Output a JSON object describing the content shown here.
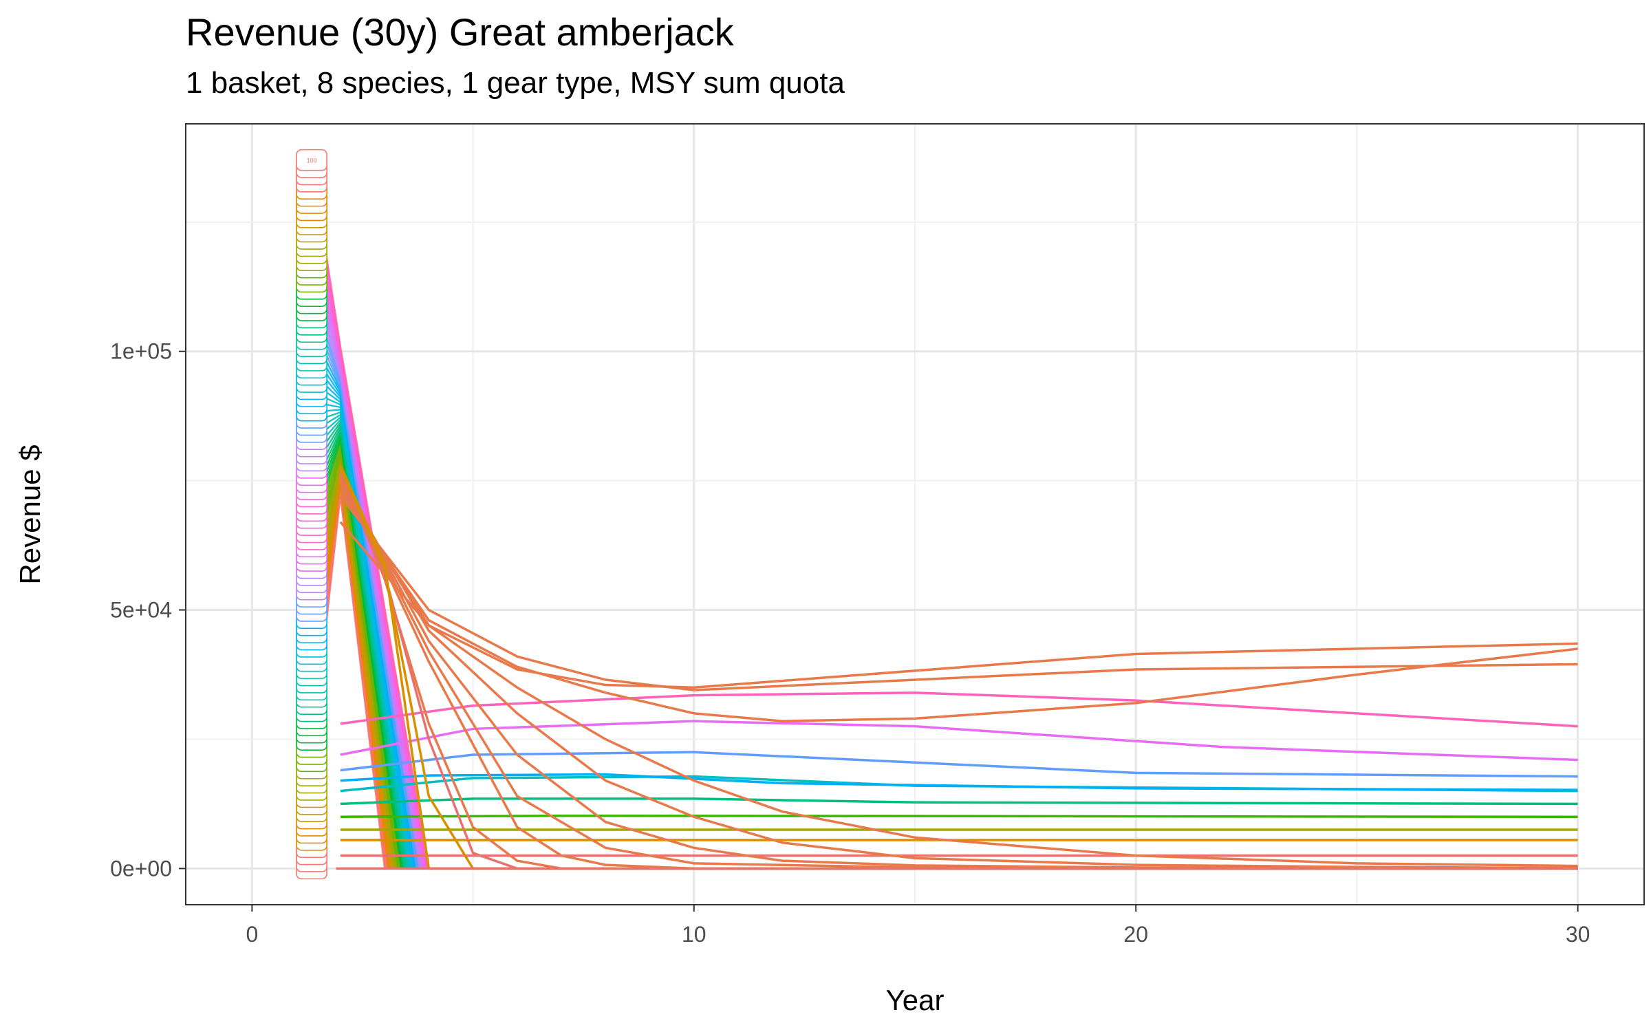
{
  "chart_data": {
    "type": "line",
    "title": "Revenue (30y) Great amberjack",
    "subtitle": "1 basket, 8 species, 1 gear type, MSY sum quota",
    "xlabel": "Year",
    "ylabel": "Revenue $",
    "xlim": [
      -1.5,
      31.5
    ],
    "ylim": [
      -7000,
      144000
    ],
    "x_ticks": [
      0,
      10,
      20,
      30
    ],
    "x_tick_labels": [
      "0",
      "10",
      "20",
      "30"
    ],
    "y_ticks": [
      0,
      50000,
      100000
    ],
    "y_tick_labels": [
      "0e+00",
      "5e+04",
      "1e+05"
    ],
    "grid": true,
    "legend": "none",
    "start_label": "100",
    "start_label_count": 100,
    "start_label_x": 1.35,
    "start_label_max": 137000,
    "series": [
      {
        "color": "#e8706d",
        "x": [
          2,
          7,
          30
        ],
        "y": [
          2500,
          2500,
          2500
        ]
      },
      {
        "color": "#d89000",
        "x": [
          2,
          7,
          30
        ],
        "y": [
          5500,
          5500,
          5500
        ]
      },
      {
        "color": "#a3a500",
        "x": [
          2,
          7,
          30
        ],
        "y": [
          7500,
          7500,
          7500
        ]
      },
      {
        "color": "#39b600",
        "x": [
          2,
          7,
          30
        ],
        "y": [
          10000,
          10200,
          10000
        ]
      },
      {
        "color": "#00bf7d",
        "x": [
          2,
          5,
          10,
          15,
          30
        ],
        "y": [
          12500,
          13500,
          13500,
          12800,
          12500
        ]
      },
      {
        "color": "#00bfc4",
        "x": [
          2,
          5,
          10,
          15,
          30
        ],
        "y": [
          15000,
          17500,
          17800,
          16000,
          15000
        ]
      },
      {
        "color": "#00b0f6",
        "x": [
          2,
          4,
          8,
          12,
          20,
          30
        ],
        "y": [
          17000,
          18000,
          18200,
          16500,
          15500,
          15200
        ]
      },
      {
        "color": "#619cff",
        "x": [
          2,
          5,
          10,
          15,
          20,
          30
        ],
        "y": [
          19000,
          22000,
          22500,
          20500,
          18500,
          17800
        ]
      },
      {
        "color": "#e76bf3",
        "x": [
          2,
          5,
          10,
          15,
          22,
          30
        ],
        "y": [
          22000,
          27000,
          28500,
          27500,
          23500,
          21000
        ]
      },
      {
        "color": "#ff62bc",
        "x": [
          2,
          5,
          10,
          15,
          20,
          30
        ],
        "y": [
          28000,
          31500,
          33500,
          34000,
          32500,
          27500
        ]
      },
      {
        "color": "#e8794a",
        "x": [
          2,
          4,
          6,
          8,
          10,
          20,
          30
        ],
        "y": [
          67000,
          47000,
          38500,
          35500,
          35000,
          41500,
          43500
        ]
      },
      {
        "color": "#e8794a",
        "x": [
          2,
          4,
          6,
          8,
          10,
          20,
          30
        ],
        "y": [
          72000,
          50000,
          41000,
          36500,
          34500,
          38500,
          39500
        ]
      },
      {
        "color": "#e8794a",
        "x": [
          2,
          4,
          6,
          8,
          10,
          12,
          15,
          20,
          25,
          30
        ],
        "y": [
          73000,
          48000,
          39000,
          34000,
          30000,
          28500,
          29000,
          32000,
          37500,
          42500
        ]
      },
      {
        "color": "#e8794a",
        "x": [
          2,
          4,
          6,
          8,
          10,
          12,
          15,
          20,
          25,
          30
        ],
        "y": [
          74000,
          47000,
          35000,
          25000,
          17000,
          11000,
          6000,
          2500,
          1000,
          500
        ]
      },
      {
        "color": "#e8794a",
        "x": [
          2,
          4,
          6,
          8,
          10,
          12,
          15,
          20,
          25,
          30
        ],
        "y": [
          75000,
          46000,
          30000,
          17000,
          10000,
          5000,
          2000,
          700,
          300,
          100
        ]
      },
      {
        "color": "#e8794a",
        "x": [
          2,
          4,
          6,
          8,
          10,
          12,
          15,
          20,
          30
        ],
        "y": [
          75500,
          44000,
          22000,
          9000,
          4000,
          1500,
          600,
          200,
          0
        ]
      },
      {
        "color": "#e8794a",
        "x": [
          2,
          4,
          6,
          8,
          10,
          15,
          30
        ],
        "y": [
          76000,
          42000,
          14000,
          4000,
          1000,
          200,
          0
        ]
      },
      {
        "color": "#e8794a",
        "x": [
          2,
          4,
          6,
          7,
          8,
          10,
          30
        ],
        "y": [
          76500,
          40000,
          8000,
          2500,
          700,
          0,
          0
        ]
      },
      {
        "color": "#e8794a",
        "x": [
          2,
          3,
          4,
          5,
          6,
          7,
          30
        ],
        "y": [
          77000,
          56000,
          28000,
          8000,
          1500,
          0,
          0
        ]
      },
      {
        "color": "#e8706d",
        "x": [
          2,
          3,
          4,
          5,
          6,
          30
        ],
        "y": [
          77000,
          57000,
          25000,
          3000,
          0,
          0
        ]
      },
      {
        "color": "#d89000",
        "x": [
          2,
          3,
          4,
          5,
          30
        ],
        "y": [
          77500,
          58000,
          14000,
          0,
          0
        ]
      },
      {
        "color": "#d89000",
        "x": [
          2,
          3,
          4,
          30
        ],
        "y": [
          78000,
          59000,
          0,
          0
        ]
      },
      {
        "color": "#e8706d",
        "x": [
          1.9,
          2,
          7,
          30
        ],
        "y": [
          0,
          0,
          0,
          0
        ]
      }
    ],
    "fan": {
      "count": 60,
      "x_start": 1.35,
      "x_peak": 2.0,
      "y_start_min": 22000,
      "y_start_max": 137000,
      "y_peak_min": 72000,
      "y_peak_max": 101000,
      "end_min": 3,
      "end_max": 4
    },
    "colors": [
      "#f8766d",
      "#e58700",
      "#c99800",
      "#a3a500",
      "#6bb100",
      "#00ba38",
      "#00bf7d",
      "#00c0af",
      "#00bcd8",
      "#00b0f6",
      "#619cff",
      "#b983ff",
      "#e76bf3",
      "#fd61d1",
      "#ff67a4"
    ]
  }
}
